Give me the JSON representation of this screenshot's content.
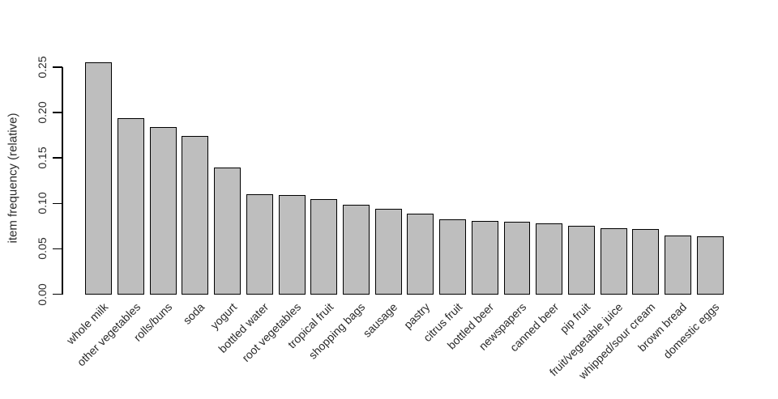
{
  "chart_data": {
    "type": "bar",
    "title": "",
    "xlabel": "",
    "ylabel": "item frequency (relative)",
    "categories": [
      "whole milk",
      "other vegetables",
      "rolls/buns",
      "soda",
      "yogurt",
      "bottled water",
      "root vegetables",
      "tropical fruit",
      "shopping bags",
      "sausage",
      "pastry",
      "citrus fruit",
      "bottled beer",
      "newspapers",
      "canned beer",
      "pip fruit",
      "fruit/vegetable juice",
      "whipped/sour cream",
      "brown bread",
      "domestic eggs"
    ],
    "values": [
      0.2555,
      0.1935,
      0.1839,
      0.1744,
      0.1395,
      0.1105,
      0.109,
      0.1049,
      0.0985,
      0.094,
      0.089,
      0.0828,
      0.0805,
      0.0798,
      0.0777,
      0.0757,
      0.0723,
      0.0717,
      0.0649,
      0.0634
    ],
    "ylim": [
      0,
      0.25
    ],
    "yticks": [
      0.0,
      0.05,
      0.1,
      0.15,
      0.2,
      0.25
    ],
    "ytick_labels": [
      "0.00",
      "0.05",
      "0.10",
      "0.15",
      "0.20",
      "0.25"
    ],
    "grid": false,
    "legend": "none",
    "bar_fill": "#bebebe",
    "bar_border": "#000000",
    "background": "#ffffff"
  }
}
